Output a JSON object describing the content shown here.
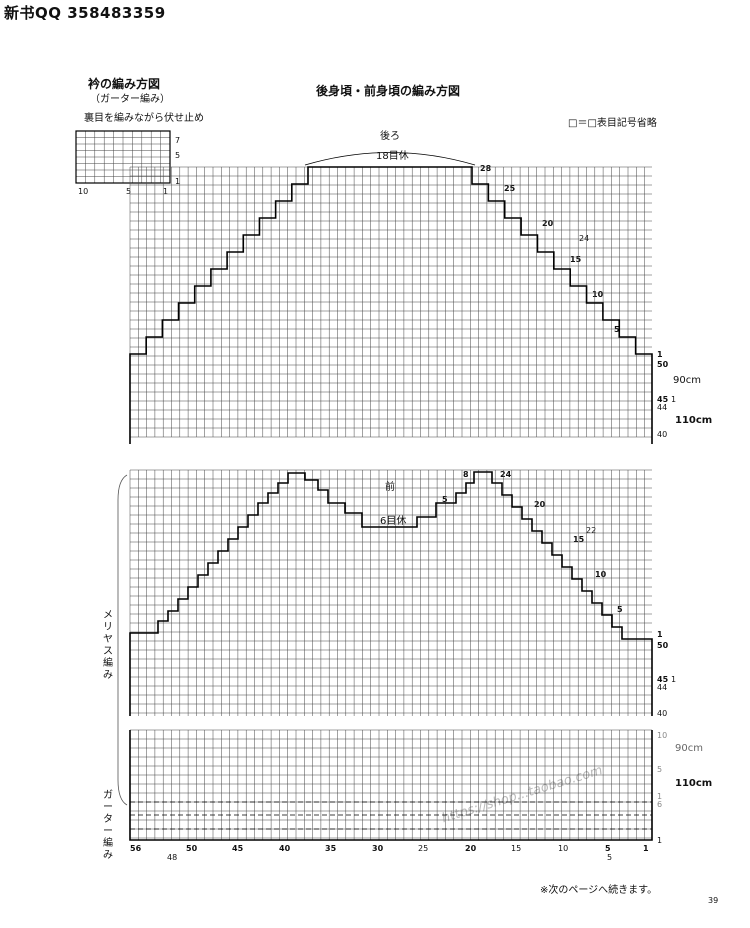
{
  "header": {
    "text": "新书QQ 358483359"
  },
  "collar": {
    "title": "衿の編み方図",
    "subtitle": "（ガーター編み）",
    "note": "裏目を編みながら伏せ止め",
    "row_labels": [
      "7",
      "5",
      "1"
    ],
    "col_labels": [
      "10",
      "5",
      "1"
    ]
  },
  "main": {
    "title": "後身頃・前身頃の編み方図",
    "legend": "□＝□表目記号省略"
  },
  "back": {
    "label": "後ろ",
    "bind_off": "18目休",
    "right_labels": [
      "28",
      "25",
      "20",
      "24",
      "15",
      "10",
      "5",
      "1",
      "50"
    ],
    "side_labels": [
      "90cm",
      "45",
      "1",
      "44",
      "110cm",
      "40"
    ]
  },
  "front": {
    "label": "前",
    "bind_off": "6目休",
    "top_labels": [
      "8",
      "24",
      "5",
      "20",
      "22",
      "15",
      "10",
      "5",
      "1",
      "50"
    ],
    "side_labels": [
      "45",
      "1",
      "44",
      "40",
      "10",
      "90cm",
      "5",
      "110cm",
      "1",
      "6",
      "1"
    ],
    "side_text_stockinette": "メリヤス編み",
    "side_text_garter": "ガーター編み"
  },
  "bottom_axis": [
    "56",
    "50",
    "45",
    "40",
    "35",
    "30",
    "25",
    "20",
    "15",
    "10",
    "5",
    "1"
  ],
  "bottom_sub": [
    "48",
    "5"
  ],
  "footer": {
    "note": "※次のページへ続きます。",
    "page_number": "39"
  },
  "watermark": "https://shop...taobao.com"
}
